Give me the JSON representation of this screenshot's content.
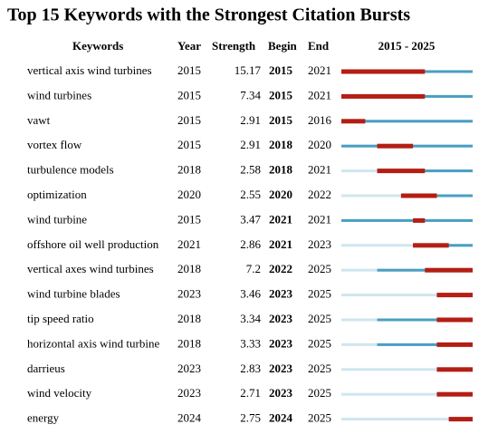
{
  "title": "Top 15 Keywords with the Strongest Citation Bursts",
  "columns": [
    "Keywords",
    "Year",
    "Strength",
    "Begin",
    "End",
    "2015 - 2025"
  ],
  "timeline": [
    2015,
    2025
  ],
  "rows": [
    {
      "keyword": "vertical axis wind turbines",
      "year": 2015,
      "strength": 15.17,
      "begin": 2015,
      "end": 2021
    },
    {
      "keyword": "wind turbines",
      "year": 2015,
      "strength": 7.34,
      "begin": 2015,
      "end": 2021
    },
    {
      "keyword": "vawt",
      "year": 2015,
      "strength": 2.91,
      "begin": 2015,
      "end": 2016
    },
    {
      "keyword": "vortex flow",
      "year": 2015,
      "strength": 2.91,
      "begin": 2018,
      "end": 2020
    },
    {
      "keyword": "turbulence models",
      "year": 2018,
      "strength": 2.58,
      "begin": 2018,
      "end": 2021
    },
    {
      "keyword": "optimization",
      "year": 2020,
      "strength": 2.55,
      "begin": 2020,
      "end": 2022
    },
    {
      "keyword": "wind turbine",
      "year": 2015,
      "strength": 3.47,
      "begin": 2021,
      "end": 2021
    },
    {
      "keyword": "offshore oil well production",
      "year": 2021,
      "strength": 2.86,
      "begin": 2021,
      "end": 2023
    },
    {
      "keyword": "vertical axes wind turbines",
      "year": 2018,
      "strength": 7.2,
      "begin": 2022,
      "end": 2025
    },
    {
      "keyword": "wind turbine blades",
      "year": 2023,
      "strength": 3.46,
      "begin": 2023,
      "end": 2025
    },
    {
      "keyword": "tip speed ratio",
      "year": 2018,
      "strength": 3.34,
      "begin": 2023,
      "end": 2025
    },
    {
      "keyword": "horizontal axis wind turbine",
      "year": 2018,
      "strength": 3.33,
      "begin": 2023,
      "end": 2025
    },
    {
      "keyword": "darrieus",
      "year": 2023,
      "strength": 2.83,
      "begin": 2023,
      "end": 2025
    },
    {
      "keyword": "wind velocity",
      "year": 2023,
      "strength": 2.71,
      "begin": 2023,
      "end": 2025
    },
    {
      "keyword": "energy",
      "year": 2024,
      "strength": 2.75,
      "begin": 2024,
      "end": 2025
    }
  ]
}
